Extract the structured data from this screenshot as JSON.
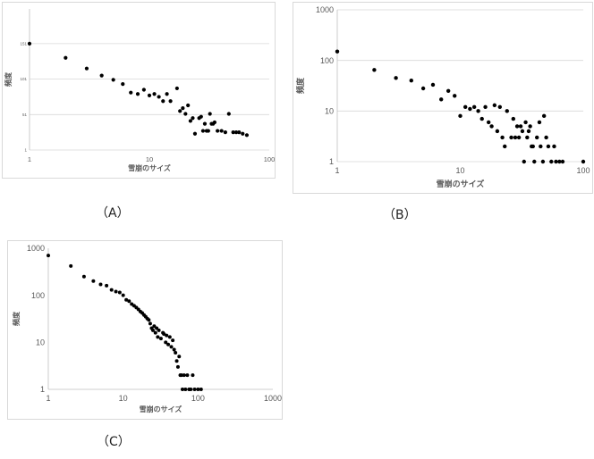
{
  "figure": {
    "captions": [
      "（A）",
      "（B）",
      "（C）"
    ]
  },
  "chart_data": [
    {
      "type": "scatter",
      "panel": "A",
      "title": "",
      "xlabel": "雪崩のサイズ",
      "ylabel": "頻度",
      "x_scale": "log",
      "y_scale": "linear",
      "xlim": [
        1,
        100
      ],
      "ylim": [
        1,
        200
      ],
      "x_ticks": [
        "1",
        "10",
        "100"
      ],
      "y_ticks": [
        "1",
        "51",
        "101",
        "151"
      ],
      "grid": true,
      "series": [
        {
          "points": [
            [
              1,
              151
            ],
            [
              2,
              131
            ],
            [
              3,
              116
            ],
            [
              4,
              106
            ],
            [
              5,
              100
            ],
            [
              6,
              94
            ],
            [
              7,
              82
            ],
            [
              8,
              80
            ],
            [
              9,
              86
            ],
            [
              10,
              78
            ],
            [
              11,
              80
            ],
            [
              12,
              76
            ],
            [
              13,
              70
            ],
            [
              14,
              80
            ],
            [
              15,
              70
            ],
            [
              17,
              88
            ],
            [
              18,
              56
            ],
            [
              19,
              60
            ],
            [
              20,
              52
            ],
            [
              21,
              64
            ],
            [
              22,
              42
            ],
            [
              23,
              46
            ],
            [
              24,
              24
            ],
            [
              26,
              46
            ],
            [
              27,
              48
            ],
            [
              28,
              28
            ],
            [
              29,
              38
            ],
            [
              30,
              28
            ],
            [
              31,
              28
            ],
            [
              32,
              52
            ],
            [
              33,
              38
            ],
            [
              34,
              38
            ],
            [
              35,
              40
            ],
            [
              37,
              28
            ],
            [
              40,
              28
            ],
            [
              43,
              26
            ],
            [
              46,
              52
            ],
            [
              50,
              26
            ],
            [
              53,
              26
            ],
            [
              56,
              26
            ],
            [
              60,
              24
            ],
            [
              65,
              22
            ]
          ]
        }
      ]
    },
    {
      "type": "scatter",
      "panel": "B",
      "title": "",
      "xlabel": "雪崩のサイズ",
      "ylabel": "頻度",
      "x_scale": "log",
      "y_scale": "log",
      "xlim": [
        1,
        100
      ],
      "ylim": [
        1,
        1000
      ],
      "x_ticks": [
        "1",
        "10",
        "100"
      ],
      "y_ticks": [
        "1",
        "10",
        "100",
        "1000"
      ],
      "grid": true,
      "series": [
        {
          "points": [
            [
              1,
              150
            ],
            [
              2,
              65
            ],
            [
              3,
              45
            ],
            [
              4,
              40
            ],
            [
              5,
              28
            ],
            [
              6,
              33
            ],
            [
              7,
              17
            ],
            [
              8,
              25
            ],
            [
              9,
              20
            ],
            [
              10,
              8
            ],
            [
              11,
              12
            ],
            [
              12,
              11
            ],
            [
              13,
              12
            ],
            [
              14,
              10
            ],
            [
              15,
              7
            ],
            [
              16,
              12
            ],
            [
              17,
              6
            ],
            [
              18,
              5
            ],
            [
              19,
              13
            ],
            [
              20,
              4
            ],
            [
              21,
              12
            ],
            [
              22,
              3
            ],
            [
              23,
              2
            ],
            [
              24,
              10
            ],
            [
              26,
              3
            ],
            [
              27,
              7
            ],
            [
              28,
              3
            ],
            [
              29,
              5
            ],
            [
              30,
              3
            ],
            [
              31,
              5
            ],
            [
              32,
              4
            ],
            [
              33,
              1
            ],
            [
              34,
              6
            ],
            [
              35,
              3
            ],
            [
              36,
              4
            ],
            [
              37,
              5
            ],
            [
              38,
              2
            ],
            [
              39,
              2
            ],
            [
              40,
              1
            ],
            [
              42,
              3
            ],
            [
              44,
              6
            ],
            [
              45,
              2
            ],
            [
              47,
              1
            ],
            [
              48,
              8
            ],
            [
              50,
              3
            ],
            [
              52,
              2
            ],
            [
              55,
              1
            ],
            [
              58,
              2
            ],
            [
              60,
              1
            ],
            [
              64,
              1
            ],
            [
              68,
              1
            ],
            [
              100,
              1
            ]
          ]
        }
      ]
    },
    {
      "type": "scatter",
      "panel": "C",
      "title": "",
      "xlabel": "雪崩のサイズ",
      "ylabel": "頻度",
      "x_scale": "log",
      "y_scale": "log",
      "xlim": [
        1,
        1000
      ],
      "ylim": [
        1,
        1000
      ],
      "x_ticks": [
        "1",
        "10",
        "100",
        "1000"
      ],
      "y_ticks": [
        "1",
        "10",
        "100",
        "1000"
      ],
      "grid": false,
      "series": [
        {
          "points": [
            [
              1,
              700
            ],
            [
              2,
              420
            ],
            [
              3,
              250
            ],
            [
              4,
              200
            ],
            [
              5,
              170
            ],
            [
              6,
              160
            ],
            [
              7,
              130
            ],
            [
              8,
              120
            ],
            [
              9,
              115
            ],
            [
              10,
              100
            ],
            [
              11,
              80
            ],
            [
              12,
              75
            ],
            [
              13,
              65
            ],
            [
              14,
              60
            ],
            [
              15,
              55
            ],
            [
              16,
              50
            ],
            [
              17,
              45
            ],
            [
              18,
              42
            ],
            [
              19,
              38
            ],
            [
              20,
              35
            ],
            [
              21,
              32
            ],
            [
              22,
              30
            ],
            [
              23,
              25
            ],
            [
              24,
              20
            ],
            [
              25,
              18
            ],
            [
              26,
              22
            ],
            [
              27,
              16
            ],
            [
              28,
              20
            ],
            [
              29,
              13
            ],
            [
              30,
              18
            ],
            [
              32,
              12
            ],
            [
              34,
              16
            ],
            [
              35,
              15
            ],
            [
              37,
              10
            ],
            [
              38,
              14
            ],
            [
              40,
              9
            ],
            [
              42,
              13
            ],
            [
              44,
              8
            ],
            [
              46,
              11
            ],
            [
              48,
              7
            ],
            [
              50,
              6
            ],
            [
              52,
              4
            ],
            [
              54,
              3
            ],
            [
              56,
              5
            ],
            [
              58,
              2
            ],
            [
              60,
              2
            ],
            [
              62,
              1
            ],
            [
              65,
              2
            ],
            [
              68,
              1
            ],
            [
              72,
              2
            ],
            [
              76,
              1
            ],
            [
              80,
              1
            ],
            [
              85,
              2
            ],
            [
              90,
              1
            ],
            [
              100,
              1
            ],
            [
              110,
              1
            ]
          ]
        }
      ]
    }
  ]
}
